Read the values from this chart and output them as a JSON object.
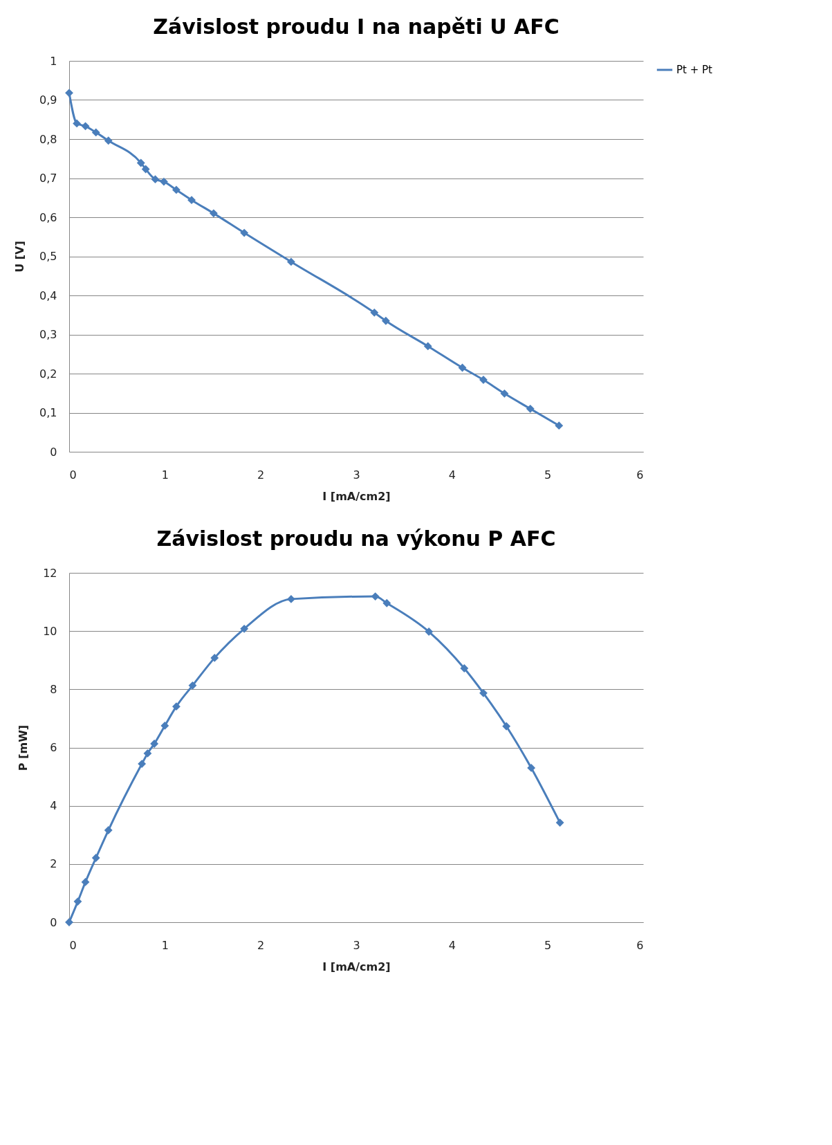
{
  "chart_data": [
    {
      "type": "line",
      "title": "Závislost proudu I na napěti U AFC",
      "xlabel": "I [mA/cm2]",
      "ylabel": "U [V]",
      "x": [
        0,
        0.08,
        0.17,
        0.28,
        0.41,
        0.75,
        0.8,
        0.9,
        0.99,
        1.12,
        1.28,
        1.51,
        1.83,
        2.32,
        3.19,
        3.31,
        3.75,
        4.11,
        4.33,
        4.55,
        4.82,
        5.12
      ],
      "series": [
        {
          "name": "Pt + Pt",
          "color": "#4a7ebb",
          "values": [
            0.918,
            0.84,
            0.833,
            0.817,
            0.796,
            0.739,
            0.723,
            0.697,
            0.691,
            0.67,
            0.644,
            0.61,
            0.56,
            0.486,
            0.356,
            0.335,
            0.27,
            0.215,
            0.184,
            0.149,
            0.11,
            0.067
          ]
        }
      ],
      "xlim": [
        0,
        6
      ],
      "xticks": [
        0,
        1,
        2,
        3,
        4,
        5,
        6
      ],
      "ylim": [
        0,
        1
      ],
      "yticks": [
        0,
        {
          "value": 0.1,
          "label": "0,1"
        },
        {
          "value": 0.2,
          "label": "0,2"
        },
        {
          "value": 0.3,
          "label": "0,3"
        },
        {
          "value": 0.4,
          "label": "0,4"
        },
        {
          "value": 0.5,
          "label": "0,5"
        },
        {
          "value": 0.6,
          "label": "0,6"
        },
        {
          "value": 0.7,
          "label": "0,7"
        },
        {
          "value": 0.8,
          "label": "0,8"
        },
        {
          "value": 0.9,
          "label": "0,9"
        },
        1
      ],
      "grid": "y",
      "legend": "right",
      "marker": "diamond",
      "line_style": "solid"
    },
    {
      "type": "line",
      "title": "Závislost proudu na výkonu P AFC",
      "xlabel": "I [mA/cm2]",
      "ylabel": "P [mW]",
      "x": [
        0,
        0.09,
        0.17,
        0.28,
        0.41,
        0.76,
        0.82,
        0.89,
        1.0,
        1.12,
        1.29,
        1.52,
        1.83,
        2.32,
        3.2,
        3.32,
        3.76,
        4.13,
        4.33,
        4.57,
        4.83,
        5.13
      ],
      "series": [
        {
          "name": "Pt + Pt",
          "color": "#4a7ebb",
          "values": [
            0,
            0.71,
            1.38,
            2.21,
            3.16,
            5.44,
            5.8,
            6.13,
            6.75,
            7.41,
            8.13,
            9.08,
            10.08,
            11.1,
            11.19,
            10.96,
            9.98,
            8.72,
            7.87,
            6.73,
            5.3,
            3.42
          ]
        }
      ],
      "xlim": [
        0,
        6
      ],
      "xticks": [
        0,
        1,
        2,
        3,
        4,
        5,
        6
      ],
      "ylim": [
        0,
        12
      ],
      "yticks": [
        0,
        2,
        4,
        6,
        8,
        10,
        12
      ],
      "grid": "y",
      "legend": "right",
      "marker": "diamond",
      "line_style": "solid"
    }
  ]
}
